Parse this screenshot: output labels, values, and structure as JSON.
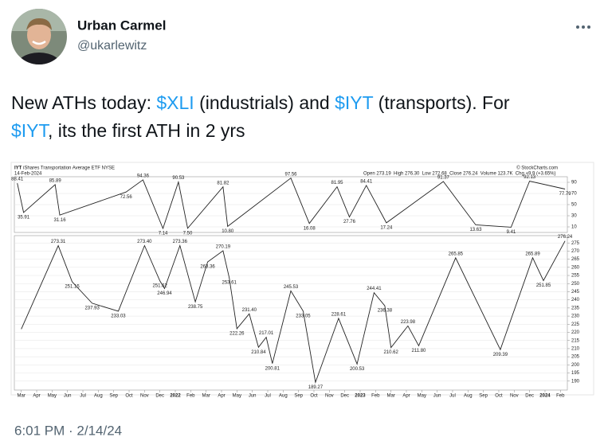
{
  "author": {
    "name": "Urban Carmel",
    "handle": "@ukarlewitz"
  },
  "tweet": {
    "lines": [
      [
        {
          "text": "New ATHs today: ",
          "link": false
        },
        {
          "text": "$XLI",
          "link": true
        },
        {
          "text": " (industrials) and ",
          "link": false
        },
        {
          "text": "$IYT",
          "link": true
        },
        {
          "text": " (transports). For",
          "link": false
        }
      ],
      [
        {
          "text": "$IYT",
          "link": true
        },
        {
          "text": ", its the first ATH in 2 yrs",
          "link": false
        }
      ]
    ]
  },
  "timestamp": "6:01 PM · 2/14/24",
  "chart_header": {
    "symbol": "IYT",
    "name": "iShares Transportation Average ETF NYSE",
    "date": "14-Feb-2024",
    "quote": "Open 273.19  High 276.30  Low 272.68  Close 276.24  Volume 123.7K  Chg +9.9 (+3.65%)",
    "source": "© StockCharts.com"
  },
  "chart_data": [
    {
      "type": "line",
      "color": "#222222",
      "x": [
        -0.26,
        0.15,
        2.2,
        2.5,
        6.8,
        7.9,
        9.2,
        10.2,
        10.8,
        13.1,
        13.4,
        17.5,
        18.7,
        20.5,
        21.3,
        22.4,
        23.7,
        27.4,
        29.5,
        31.8,
        33.0,
        35.3
      ],
      "values": [
        88.41,
        35.91,
        85.89,
        31.16,
        72.56,
        94.36,
        7.14,
        90.53,
        7.5,
        81.82,
        10.8,
        97.56,
        16.08,
        81.95,
        27.76,
        84.41,
        17.24,
        91.37,
        13.63,
        9.41,
        92.13,
        77.79
      ],
      "value_labels": [
        "88.41",
        "35.91",
        "85.89",
        "31.16",
        "72.56",
        "94.36",
        "7.14",
        "90.53",
        "7.50",
        "81.82",
        "10.80",
        "97.56",
        "16.08",
        "81.95",
        "27.76",
        "84.41",
        "17.24",
        "91.37",
        "13.63",
        "9.41",
        "92.13",
        "77.79"
      ],
      "xlim": [
        -0.45,
        35.45
      ],
      "ylim": [
        0,
        100
      ],
      "yticks": [
        10,
        30,
        50,
        70,
        90
      ],
      "grid": true
    },
    {
      "type": "line",
      "color": "#222222",
      "x": [
        0,
        2.4,
        3.3,
        4.6,
        6.3,
        8.0,
        9.0,
        9.3,
        10.3,
        11.3,
        12.1,
        13.1,
        13.5,
        14.0,
        14.8,
        15.4,
        15.9,
        16.3,
        17.5,
        18.3,
        19.1,
        20.6,
        21.8,
        22.9,
        23.6,
        24.0,
        25.1,
        25.8,
        28.2,
        31.1,
        33.2,
        33.9,
        35.3
      ],
      "values": [
        222,
        273.31,
        251.15,
        237.93,
        233.03,
        273.4,
        251.62,
        246.94,
        273.36,
        238.75,
        263.36,
        270.19,
        253.61,
        222.26,
        231.4,
        210.84,
        217.01,
        200.81,
        245.53,
        233.05,
        189.27,
        228.61,
        200.53,
        244.41,
        236.38,
        210.62,
        223.98,
        211.8,
        265.85,
        209.39,
        265.89,
        251.85,
        276.24
      ],
      "value_labels": [
        null,
        "273.31",
        "251.15",
        "237.93",
        "233.03",
        "273.40",
        "251.62",
        "246.94",
        "273.36",
        "238.75",
        "263.36",
        "270.19",
        "253.61",
        "222.26",
        "231.40",
        "210.84",
        "217.01",
        "200.81",
        "245.53",
        "233.05",
        "189.27",
        "228.61",
        "200.53",
        "244.41",
        "236.38",
        "210.62",
        "223.98",
        "211.80",
        "265.85",
        "209.39",
        "265.89",
        "251.85",
        "276.24"
      ],
      "xlim": [
        -0.45,
        35.45
      ],
      "ylim": [
        184.5,
        279.5
      ],
      "yticks": [
        190,
        195,
        200,
        205,
        210,
        215,
        220,
        225,
        230,
        235,
        240,
        245,
        250,
        255,
        260,
        265,
        270,
        275
      ],
      "xticks": [
        {
          "value": 0,
          "label": "Mar"
        },
        {
          "value": 1,
          "label": "Apr"
        },
        {
          "value": 2,
          "label": "May"
        },
        {
          "value": 3,
          "label": "Jun"
        },
        {
          "value": 4,
          "label": "Jul"
        },
        {
          "value": 5,
          "label": "Aug"
        },
        {
          "value": 6,
          "label": "Sep"
        },
        {
          "value": 7,
          "label": "Oct"
        },
        {
          "value": 8,
          "label": "Nov"
        },
        {
          "value": 9,
          "label": "Dec"
        },
        {
          "value": 10,
          "label": "2022"
        },
        {
          "value": 11,
          "label": "Feb"
        },
        {
          "value": 12,
          "label": "Mar"
        },
        {
          "value": 13,
          "label": "Apr"
        },
        {
          "value": 14,
          "label": "May"
        },
        {
          "value": 15,
          "label": "Jun"
        },
        {
          "value": 16,
          "label": "Jul"
        },
        {
          "value": 17,
          "label": "Aug"
        },
        {
          "value": 18,
          "label": "Sep"
        },
        {
          "value": 19,
          "label": "Oct"
        },
        {
          "value": 20,
          "label": "Nov"
        },
        {
          "value": 21,
          "label": "Dec"
        },
        {
          "value": 22,
          "label": "2023"
        },
        {
          "value": 23,
          "label": "Feb"
        },
        {
          "value": 24,
          "label": "Mar"
        },
        {
          "value": 25,
          "label": "Apr"
        },
        {
          "value": 26,
          "label": "May"
        },
        {
          "value": 27,
          "label": "Jun"
        },
        {
          "value": 28,
          "label": "Jul"
        },
        {
          "value": 29,
          "label": "Aug"
        },
        {
          "value": 30,
          "label": "Sep"
        },
        {
          "value": 31,
          "label": "Oct"
        },
        {
          "value": 32,
          "label": "Nov"
        },
        {
          "value": 33,
          "label": "Dec"
        },
        {
          "value": 34,
          "label": "2024"
        },
        {
          "value": 35,
          "label": "Feb"
        }
      ],
      "grid": true
    }
  ]
}
